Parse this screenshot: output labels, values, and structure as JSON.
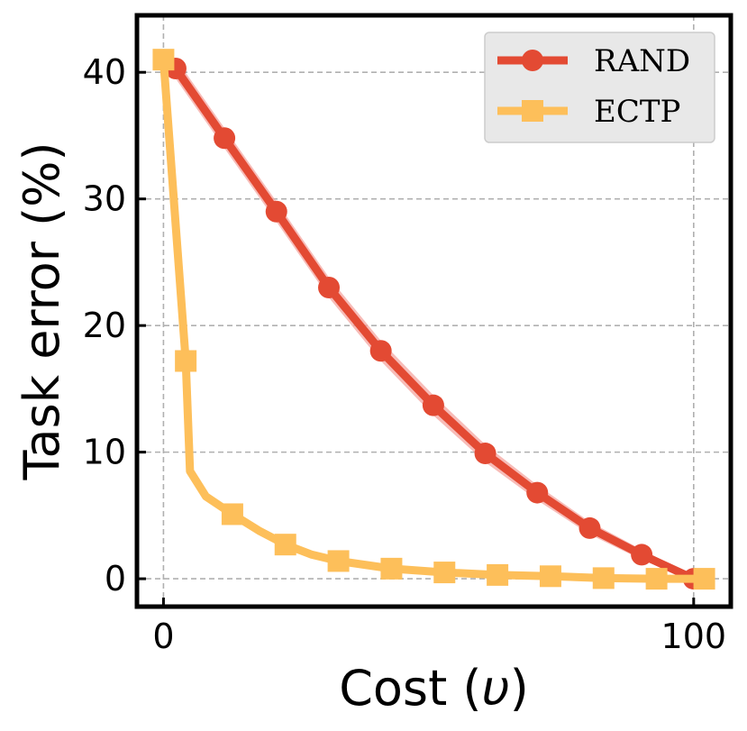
{
  "chart_data": {
    "type": "line",
    "title": "",
    "xlabel": "Cost (",
    "xlabel_symbol": "υ",
    "xlabel_close": ")",
    "ylabel": "Task error (%)",
    "xlim": [
      -5,
      107
    ],
    "ylim": [
      -2.2,
      44.5
    ],
    "xticks": [
      0,
      100
    ],
    "yticks": [
      0,
      10,
      20,
      30,
      40
    ],
    "grid": true,
    "legend_position": "top-right",
    "series": [
      {
        "name": "RAND",
        "color": "#e34a33",
        "band_color": "#f4a6a0",
        "marker": "circle",
        "x": [
          2.3,
          11.5,
          21.3,
          31.2,
          41.0,
          50.9,
          60.7,
          70.5,
          80.4,
          90.2,
          100.0
        ],
        "values": [
          40.3,
          34.8,
          29.0,
          23.0,
          18.0,
          13.7,
          9.9,
          6.8,
          4.0,
          1.9,
          0.0
        ],
        "band": [
          0.8,
          0.8,
          0.8,
          0.8,
          0.8,
          0.8,
          0.7,
          0.6,
          0.5,
          0.4,
          0.2
        ]
      },
      {
        "name": "ECTP",
        "color": "#fdbf5a",
        "marker": "square",
        "x": [
          0.0,
          4.2,
          5.0,
          8.0,
          13.0,
          18.0,
          23.0,
          28.0,
          33.0,
          43.0,
          53.0,
          63.0,
          73.0,
          83.0,
          93.0,
          102.0
        ],
        "values": [
          41.0,
          17.2,
          8.5,
          6.5,
          5.1,
          3.8,
          2.7,
          1.9,
          1.4,
          0.8,
          0.5,
          0.3,
          0.2,
          0.05,
          0.0,
          0.0
        ],
        "marker_indices": [
          0,
          1,
          4,
          6,
          8,
          9,
          10,
          11,
          12,
          13,
          14,
          15
        ]
      }
    ]
  }
}
